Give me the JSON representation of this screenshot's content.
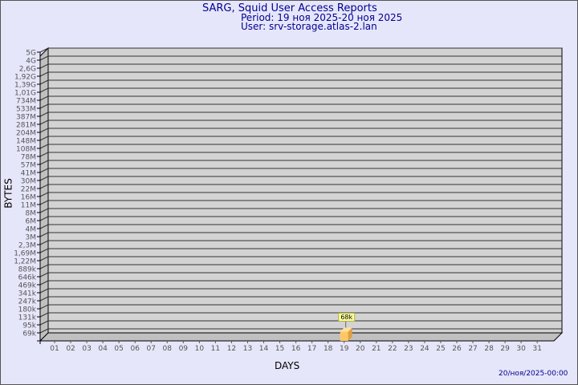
{
  "header": {
    "title": "SARG, Squid User Access Reports",
    "period": "Period: 19 ноя 2025-20 ноя 2025",
    "user": "User: srv-storage.atlas-2.lan"
  },
  "footer": {
    "timestamp": "20/ноя/2025-00:00"
  },
  "colors": {
    "background": "#e6e6fa",
    "plot": "#d3d3d3",
    "bar": "#ffc864",
    "text": "#000090"
  },
  "chart_data": {
    "type": "bar",
    "style": "3d",
    "xlabel": "DAYS",
    "ylabel": "BYTES",
    "y_scale": "log",
    "grid": true,
    "y_tick_labels": [
      "5G",
      "4G",
      "2,6G",
      "1,92G",
      "1,39G",
      "1,01G",
      "734M",
      "533M",
      "387M",
      "281M",
      "204M",
      "148M",
      "108M",
      "78M",
      "57M",
      "41M",
      "30M",
      "22M",
      "16M",
      "11M",
      "8M",
      "6M",
      "4M",
      "3M",
      "2,3M",
      "1,69M",
      "1,22M",
      "889k",
      "646k",
      "469k",
      "341k",
      "247k",
      "180k",
      "131k",
      "95k",
      "69k"
    ],
    "y_tick_values": [
      5000000000.0,
      4000000000.0,
      2600000000.0,
      1920000000.0,
      1390000000.0,
      1010000000.0,
      734000000.0,
      533000000.0,
      387000000.0,
      281000000.0,
      204000000.0,
      148000000.0,
      108000000.0,
      78000000.0,
      57000000.0,
      41000000.0,
      30000000.0,
      22000000.0,
      16000000.0,
      11000000.0,
      8000000.0,
      6000000.0,
      4000000.0,
      3000000.0,
      2300000.0,
      1690000.0,
      1220000.0,
      889000.0,
      646000.0,
      469000.0,
      341000.0,
      247000.0,
      180000.0,
      131000.0,
      95000.0,
      69000.0
    ],
    "categories": [
      "01",
      "02",
      "03",
      "04",
      "05",
      "06",
      "07",
      "08",
      "09",
      "10",
      "11",
      "12",
      "13",
      "14",
      "15",
      "16",
      "17",
      "18",
      "19",
      "20",
      "21",
      "22",
      "23",
      "24",
      "25",
      "26",
      "27",
      "28",
      "29",
      "30",
      "31"
    ],
    "bars": [
      {
        "day": "19",
        "value": 68000,
        "label": "68k"
      }
    ]
  }
}
